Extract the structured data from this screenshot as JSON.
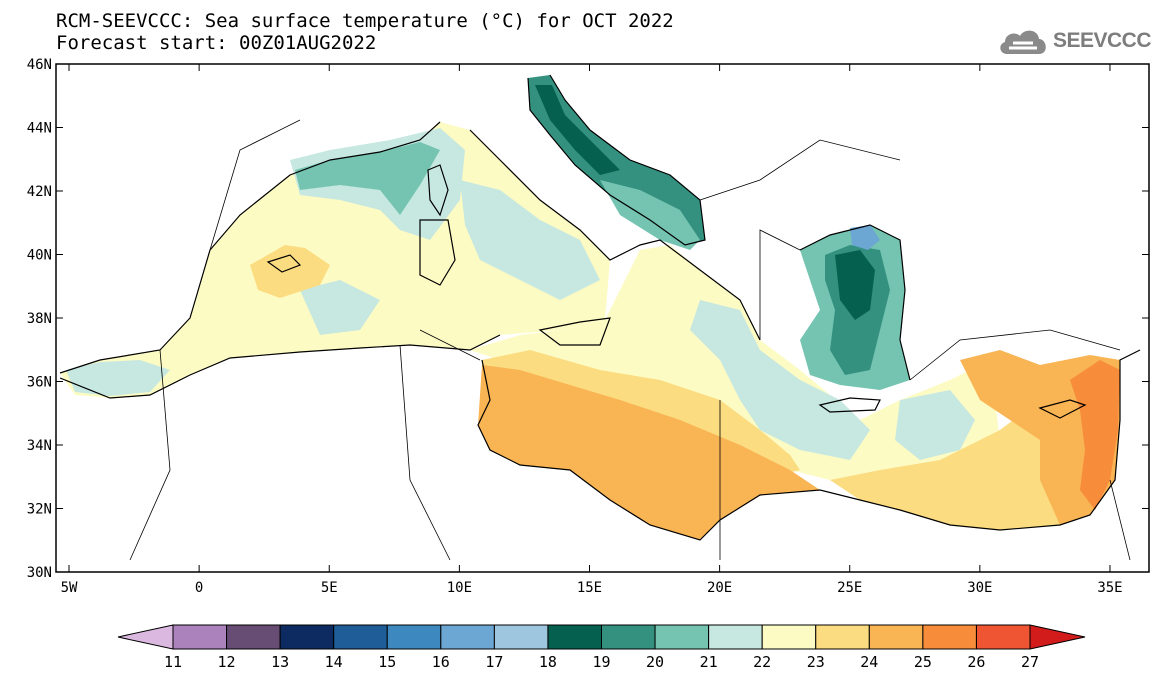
{
  "title": {
    "line1": "RCM-SEEVCCC: Sea surface temperature (°C) for OCT 2022",
    "line2": "Forecast start: 00Z01AUG2022"
  },
  "logo": {
    "text": "SEEVCCC",
    "icon": "cloud-icon"
  },
  "map": {
    "lon_range": [
      -5.5,
      36.5
    ],
    "lat_range": [
      30,
      46
    ],
    "lat_ticks": [
      {
        "value": 46,
        "label": "46N"
      },
      {
        "value": 44,
        "label": "44N"
      },
      {
        "value": 42,
        "label": "42N"
      },
      {
        "value": 40,
        "label": "40N"
      },
      {
        "value": 38,
        "label": "38N"
      },
      {
        "value": 36,
        "label": "36N"
      },
      {
        "value": 34,
        "label": "34N"
      },
      {
        "value": 32,
        "label": "32N"
      },
      {
        "value": 30,
        "label": "30N"
      }
    ],
    "lon_ticks": [
      {
        "value": -5,
        "label": "5W"
      },
      {
        "value": 0,
        "label": "0"
      },
      {
        "value": 5,
        "label": "5E"
      },
      {
        "value": 10,
        "label": "10E"
      },
      {
        "value": 15,
        "label": "15E"
      },
      {
        "value": 20,
        "label": "20E"
      },
      {
        "value": 25,
        "label": "25E"
      },
      {
        "value": 30,
        "label": "30E"
      },
      {
        "value": 35,
        "label": "35E"
      }
    ]
  },
  "colorbar": {
    "labels": [
      "11",
      "12",
      "13",
      "14",
      "15",
      "16",
      "17",
      "18",
      "19",
      "20",
      "21",
      "22",
      "23",
      "24",
      "25",
      "26",
      "27"
    ],
    "colors": [
      "#dab8df",
      "#ab82bb",
      "#674c73",
      "#0d2b61",
      "#1f5d99",
      "#3c88bf",
      "#6ca6d3",
      "#9ec6df",
      "#05604f",
      "#34917f",
      "#74c4b1",
      "#c6e8e0",
      "#fdfbc4",
      "#fbdc80",
      "#f9b453",
      "#f78c3a",
      "#ef5433",
      "#d21b1b"
    ]
  }
}
